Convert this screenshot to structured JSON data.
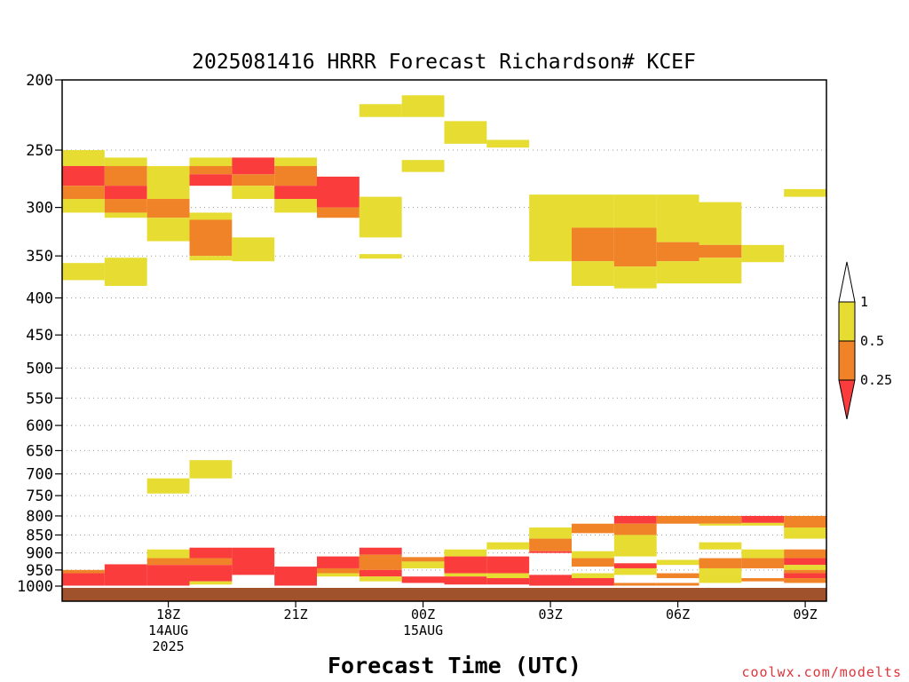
{
  "chart_data": {
    "type": "heatmap",
    "title": "2025081416 HRRR Forecast Richardson# KCEF",
    "xlabel": "Forecast Time (UTC)",
    "ylabel": "",
    "credit": "coolwx.com/modelts",
    "x_time_range_hours": [
      15.5,
      33.5
    ],
    "ylim": [
      1000,
      200
    ],
    "ylog": true,
    "grid": "horizontal dotted",
    "y_ticks": [
      200,
      250,
      300,
      350,
      400,
      450,
      500,
      550,
      600,
      650,
      700,
      750,
      800,
      850,
      900,
      950,
      1000
    ],
    "x_ticks": [
      {
        "hour": 18,
        "lines": [
          "18Z",
          "14AUG",
          "2025"
        ]
      },
      {
        "hour": 21,
        "lines": [
          "21Z"
        ]
      },
      {
        "hour": 24,
        "lines": [
          "00Z",
          "15AUG"
        ]
      },
      {
        "hour": 27,
        "lines": [
          "03Z"
        ]
      },
      {
        "hour": 30,
        "lines": [
          "06Z"
        ]
      },
      {
        "hour": 33,
        "lines": [
          "09Z"
        ]
      }
    ],
    "colorbar": {
      "ticks": [
        "1",
        "0.5",
        "0.25"
      ],
      "colors": {
        "above_1": "#ffffff",
        "0.5-1": "#e6dc32",
        "0.25-0.5": "#f08228",
        "below_0.25": "#fa3c3c"
      }
    },
    "ground_color": "#a0522d",
    "cells": [
      [
        16,
        250,
        263,
        "y"
      ],
      [
        16,
        263,
        280,
        "r"
      ],
      [
        16,
        280,
        292,
        "o"
      ],
      [
        16,
        292,
        305,
        "y"
      ],
      [
        16,
        358,
        378,
        "y"
      ],
      [
        16,
        950,
        960,
        "o"
      ],
      [
        16,
        960,
        1000,
        "r"
      ],
      [
        17,
        256,
        263,
        "y"
      ],
      [
        17,
        263,
        280,
        "o"
      ],
      [
        17,
        280,
        292,
        "r"
      ],
      [
        17,
        292,
        305,
        "o"
      ],
      [
        17,
        305,
        310,
        "y"
      ],
      [
        17,
        352,
        385,
        "y"
      ],
      [
        17,
        933,
        1000,
        "r"
      ],
      [
        18,
        263,
        292,
        "y"
      ],
      [
        18,
        292,
        310,
        "o"
      ],
      [
        18,
        310,
        334,
        "y"
      ],
      [
        18,
        710,
        745,
        "y"
      ],
      [
        18,
        890,
        915,
        "y"
      ],
      [
        18,
        915,
        935,
        "o"
      ],
      [
        18,
        935,
        1000,
        "r"
      ],
      [
        19,
        256,
        263,
        "y"
      ],
      [
        19,
        263,
        270,
        "o"
      ],
      [
        19,
        270,
        280,
        "r"
      ],
      [
        19,
        305,
        312,
        "y"
      ],
      [
        19,
        312,
        350,
        "o"
      ],
      [
        19,
        350,
        355,
        "y"
      ],
      [
        19,
        670,
        710,
        "y"
      ],
      [
        19,
        885,
        915,
        "r"
      ],
      [
        19,
        915,
        935,
        "o"
      ],
      [
        19,
        935,
        985,
        "r"
      ],
      [
        19,
        985,
        995,
        "y"
      ],
      [
        20,
        256,
        263,
        "r"
      ],
      [
        20,
        263,
        270,
        "r"
      ],
      [
        20,
        270,
        280,
        "o"
      ],
      [
        20,
        280,
        292,
        "y"
      ],
      [
        20,
        330,
        356,
        "y"
      ],
      [
        20,
        885,
        965,
        "r"
      ],
      [
        21,
        256,
        263,
        "y"
      ],
      [
        21,
        263,
        280,
        "o"
      ],
      [
        21,
        280,
        292,
        "r"
      ],
      [
        21,
        292,
        305,
        "y"
      ],
      [
        21,
        940,
        1000,
        "r"
      ],
      [
        22,
        272,
        300,
        "r"
      ],
      [
        22,
        300,
        310,
        "o"
      ],
      [
        22,
        910,
        945,
        "r"
      ],
      [
        22,
        945,
        960,
        "o"
      ],
      [
        22,
        960,
        970,
        "y"
      ],
      [
        23,
        216,
        225,
        "y"
      ],
      [
        23,
        290,
        330,
        "y"
      ],
      [
        23,
        348,
        353,
        "y"
      ],
      [
        23,
        885,
        905,
        "r"
      ],
      [
        23,
        905,
        950,
        "o"
      ],
      [
        23,
        950,
        970,
        "r"
      ],
      [
        23,
        970,
        985,
        "y"
      ],
      [
        24,
        210,
        225,
        "y"
      ],
      [
        24,
        258,
        268,
        "y"
      ],
      [
        24,
        912,
        925,
        "o"
      ],
      [
        24,
        925,
        945,
        "y"
      ],
      [
        24,
        970,
        990,
        "r"
      ],
      [
        25,
        228,
        245,
        "y"
      ],
      [
        25,
        890,
        910,
        "y"
      ],
      [
        25,
        910,
        960,
        "r"
      ],
      [
        25,
        960,
        970,
        "y"
      ],
      [
        25,
        970,
        995,
        "r"
      ],
      [
        26,
        242,
        248,
        "y"
      ],
      [
        26,
        870,
        890,
        "y"
      ],
      [
        26,
        910,
        960,
        "r"
      ],
      [
        26,
        960,
        975,
        "y"
      ],
      [
        26,
        975,
        995,
        "r"
      ],
      [
        27,
        288,
        356,
        "y"
      ],
      [
        27,
        830,
        860,
        "y"
      ],
      [
        27,
        860,
        895,
        "o"
      ],
      [
        27,
        895,
        900,
        "r"
      ],
      [
        27,
        965,
        1000,
        "r"
      ],
      [
        28,
        288,
        320,
        "y"
      ],
      [
        28,
        320,
        356,
        "o"
      ],
      [
        28,
        356,
        385,
        "y"
      ],
      [
        28,
        820,
        845,
        "o"
      ],
      [
        28,
        895,
        915,
        "y"
      ],
      [
        28,
        915,
        940,
        "o"
      ],
      [
        28,
        960,
        975,
        "y"
      ],
      [
        28,
        975,
        1000,
        "r"
      ],
      [
        29,
        288,
        320,
        "y"
      ],
      [
        29,
        320,
        362,
        "o"
      ],
      [
        29,
        362,
        388,
        "y"
      ],
      [
        29,
        800,
        820,
        "r"
      ],
      [
        29,
        820,
        850,
        "o"
      ],
      [
        29,
        850,
        910,
        "y"
      ],
      [
        29,
        930,
        945,
        "r"
      ],
      [
        29,
        945,
        965,
        "y"
      ],
      [
        29,
        990,
        1000,
        "o"
      ],
      [
        30,
        288,
        335,
        "y"
      ],
      [
        30,
        335,
        356,
        "o"
      ],
      [
        30,
        356,
        382,
        "y"
      ],
      [
        30,
        800,
        820,
        "o"
      ],
      [
        30,
        920,
        935,
        "y"
      ],
      [
        30,
        960,
        975,
        "o"
      ],
      [
        30,
        990,
        1000,
        "o"
      ],
      [
        31,
        295,
        338,
        "y"
      ],
      [
        31,
        338,
        352,
        "o"
      ],
      [
        31,
        352,
        382,
        "y"
      ],
      [
        31,
        800,
        820,
        "o"
      ],
      [
        31,
        820,
        825,
        "y"
      ],
      [
        31,
        870,
        890,
        "y"
      ],
      [
        31,
        915,
        945,
        "o"
      ],
      [
        31,
        945,
        960,
        "y"
      ],
      [
        31,
        960,
        990,
        "y"
      ],
      [
        32,
        338,
        357,
        "y"
      ],
      [
        32,
        800,
        818,
        "r"
      ],
      [
        32,
        818,
        825,
        "y"
      ],
      [
        32,
        890,
        915,
        "y"
      ],
      [
        32,
        915,
        945,
        "o"
      ],
      [
        32,
        975,
        985,
        "o"
      ],
      [
        33,
        283,
        290,
        "y"
      ],
      [
        33,
        800,
        830,
        "o"
      ],
      [
        33,
        830,
        860,
        "y"
      ],
      [
        33,
        890,
        915,
        "o"
      ],
      [
        33,
        915,
        935,
        "r"
      ],
      [
        33,
        935,
        950,
        "y"
      ],
      [
        33,
        950,
        960,
        "o"
      ],
      [
        33,
        960,
        975,
        "r"
      ],
      [
        33,
        975,
        990,
        "o"
      ]
    ]
  }
}
